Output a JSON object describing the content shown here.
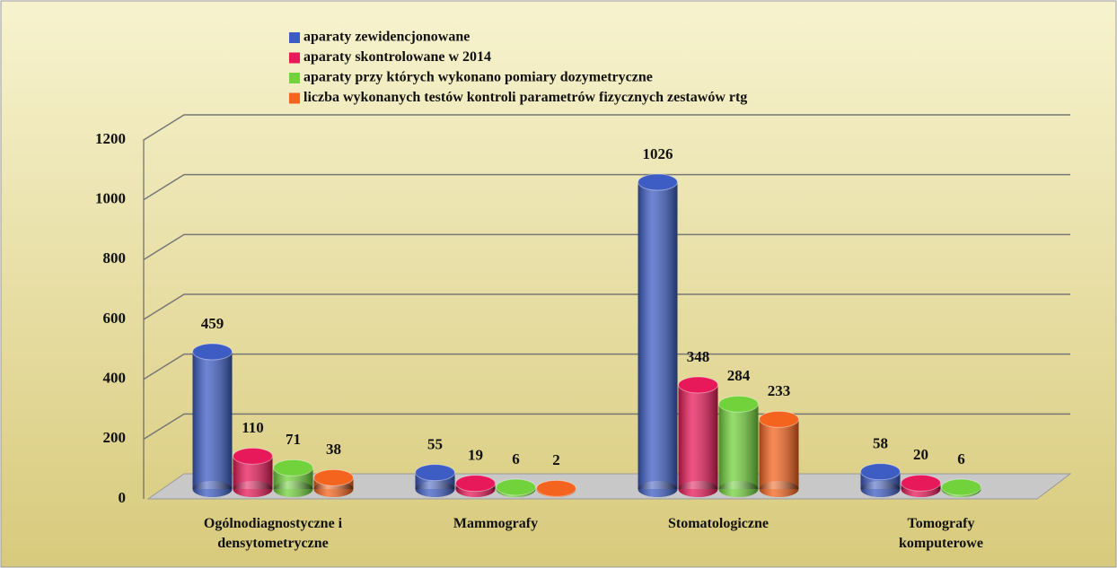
{
  "chart_data": {
    "type": "bar",
    "categories": [
      "Ogólnodiagnostyczne i\ndensytometryczne",
      "Mammografy",
      "Stomatologiczne",
      "Tomografy\nkomputerowe"
    ],
    "series": [
      {
        "name": "aparaty zewidencjonowane",
        "color": "#3d5cc4",
        "values": [
          459,
          55,
          1026,
          58
        ]
      },
      {
        "name": "aparaty skontrolowane w 2014",
        "color": "#e8195a",
        "values": [
          110,
          19,
          348,
          20
        ]
      },
      {
        "name": "aparaty przy których wykonano pomiary dozymetryczne",
        "color": "#72d23c",
        "values": [
          71,
          6,
          284,
          6
        ]
      },
      {
        "name": "liczba wykonanych testów kontroli parametrów fizycznych zestawów rtg",
        "color": "#f5641e",
        "values": [
          38,
          2,
          233,
          null
        ]
      }
    ],
    "ylim": [
      0,
      1200
    ],
    "yticks": [
      0,
      200,
      400,
      600,
      800,
      1000,
      1200
    ],
    "grid": true,
    "legend": "top"
  }
}
